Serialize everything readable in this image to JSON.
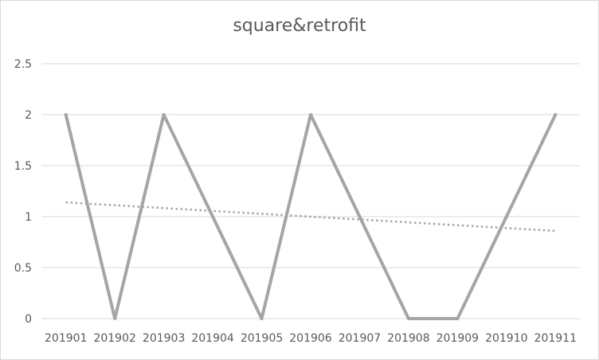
{
  "chart_data": {
    "type": "line",
    "title": "square&retrofit",
    "xlabel": "",
    "ylabel": "",
    "categories": [
      "201901",
      "201902",
      "201903",
      "201904",
      "201905",
      "201906",
      "201907",
      "201908",
      "201909",
      "201910",
      "201911"
    ],
    "series": [
      {
        "values": [
          2,
          0,
          2,
          1,
          0,
          2,
          1,
          0,
          0,
          1,
          2
        ],
        "color": "#a5a5a5"
      }
    ],
    "trendline": {
      "type": "linear",
      "start": 1.14,
      "end": 0.86,
      "color": "#a5a5a5",
      "style": "dotted"
    },
    "ylim": [
      0,
      2.5
    ],
    "yticks": [
      "0",
      "0.5",
      "1",
      "1.5",
      "2",
      "2.5"
    ],
    "grid": true,
    "legend": "none"
  }
}
